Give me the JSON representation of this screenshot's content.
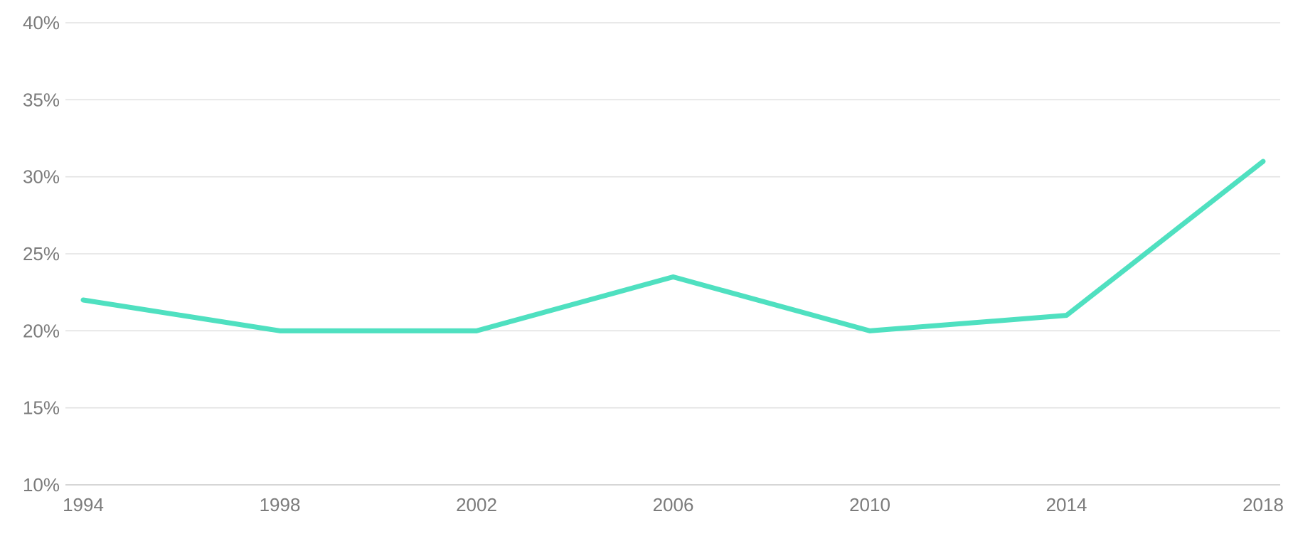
{
  "colors": {
    "series": "#4fe0c0",
    "grid": "#e2e2e2",
    "tick_text": "#7b7b7b"
  },
  "chart_data": {
    "type": "line",
    "title": "",
    "xlabel": "",
    "ylabel": "",
    "x": [
      1994,
      1998,
      2002,
      2006,
      2010,
      2014,
      2018
    ],
    "x_tick_labels": [
      "1994",
      "1998",
      "2002",
      "2006",
      "2010",
      "2014",
      "2018"
    ],
    "y_ticks": [
      10,
      15,
      20,
      25,
      30,
      35,
      40
    ],
    "y_tick_labels": [
      "10%",
      "15%",
      "20%",
      "25%",
      "30%",
      "35%",
      "40%"
    ],
    "ylim": [
      10,
      40
    ],
    "xlim": [
      1994,
      2018
    ],
    "y_unit": "%",
    "grid": true,
    "legend": "none",
    "series": [
      {
        "values": [
          22,
          20,
          20,
          23.5,
          20,
          21,
          31
        ]
      }
    ]
  }
}
